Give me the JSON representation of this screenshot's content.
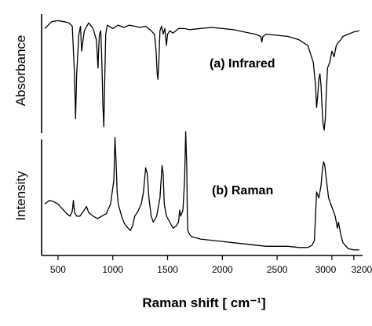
{
  "chart_data": [
    {
      "type": "line",
      "panel": "a",
      "annotation": "(a) Infrared",
      "ylabel": "Absorbance",
      "xlim": [
        350,
        3280
      ],
      "series": [
        {
          "x": [
            380,
            440,
            500,
            560,
            600,
            630,
            650,
            660,
            670,
            690,
            705,
            715,
            740,
            780,
            820,
            850,
            865,
            870,
            878,
            890,
            900,
            910,
            918,
            925,
            935,
            950,
            1000,
            1050,
            1100,
            1150,
            1200,
            1250,
            1300,
            1350,
            1380,
            1395,
            1405,
            1412,
            1420,
            1430,
            1445,
            1460,
            1475,
            1490,
            1500,
            1520,
            1550,
            1600,
            1650,
            1700,
            1800,
            1900,
            2000,
            2100,
            2200,
            2300,
            2350,
            2360,
            2370,
            2400,
            2500,
            2600,
            2700,
            2780,
            2830,
            2850,
            2860,
            2870,
            2880,
            2890,
            2900,
            2910,
            2920,
            2930,
            2940,
            2950,
            2960,
            2980,
            3000,
            3020,
            3040,
            3060,
            3080,
            3100,
            3150,
            3200,
            3250
          ],
          "y": [
            0.9,
            0.96,
            0.97,
            0.96,
            0.95,
            0.92,
            0.5,
            0.1,
            0.5,
            0.85,
            0.92,
            0.7,
            0.88,
            0.95,
            0.9,
            0.8,
            0.55,
            0.7,
            0.85,
            0.88,
            0.6,
            0.2,
            0.03,
            0.4,
            0.85,
            0.93,
            0.9,
            0.93,
            0.91,
            0.93,
            0.92,
            0.91,
            0.92,
            0.88,
            0.85,
            0.7,
            0.5,
            0.45,
            0.6,
            0.88,
            0.92,
            0.85,
            0.9,
            0.75,
            0.85,
            0.88,
            0.86,
            0.9,
            0.9,
            0.89,
            0.9,
            0.91,
            0.9,
            0.89,
            0.87,
            0.85,
            0.83,
            0.78,
            0.83,
            0.85,
            0.84,
            0.83,
            0.8,
            0.75,
            0.6,
            0.4,
            0.2,
            0.3,
            0.45,
            0.5,
            0.4,
            0.2,
            0.05,
            0.0,
            0.1,
            0.35,
            0.55,
            0.6,
            0.7,
            0.65,
            0.75,
            0.78,
            0.8,
            0.83,
            0.85,
            0.87,
            0.88
          ]
        }
      ]
    },
    {
      "type": "line",
      "panel": "b",
      "annotation": "(b) Raman",
      "ylabel": "Intensity",
      "xlabel": "Raman shift [ cm⁻¹]",
      "xlim": [
        350,
        3280
      ],
      "xticks": [
        500,
        1000,
        1500,
        2000,
        2500,
        3000,
        3200
      ],
      "xtick_labels": [
        "500",
        "1000",
        "1500",
        "2000",
        "2500",
        "3000",
        "3200"
      ],
      "series": [
        {
          "x": [
            380,
            420,
            460,
            500,
            540,
            580,
            610,
            630,
            640,
            650,
            670,
            700,
            740,
            760,
            780,
            820,
            860,
            900,
            940,
            980,
            1010,
            1020,
            1030,
            1040,
            1050,
            1080,
            1100,
            1120,
            1140,
            1160,
            1180,
            1200,
            1230,
            1260,
            1280,
            1300,
            1315,
            1330,
            1350,
            1370,
            1400,
            1430,
            1450,
            1460,
            1470,
            1490,
            1520,
            1550,
            1580,
            1600,
            1610,
            1620,
            1640,
            1655,
            1665,
            1675,
            1680,
            1685,
            1700,
            1720,
            1760,
            1800,
            1900,
            2000,
            2100,
            2200,
            2300,
            2400,
            2500,
            2600,
            2700,
            2780,
            2820,
            2840,
            2850,
            2860,
            2880,
            2900,
            2915,
            2925,
            2935,
            2950,
            2970,
            2990,
            3010,
            3030,
            3050,
            3060,
            3080,
            3100,
            3150,
            3200,
            3250
          ],
          "y": [
            0.4,
            0.43,
            0.42,
            0.4,
            0.36,
            0.32,
            0.3,
            0.34,
            0.43,
            0.33,
            0.3,
            0.3,
            0.35,
            0.38,
            0.33,
            0.3,
            0.28,
            0.3,
            0.32,
            0.4,
            0.6,
            0.95,
            0.75,
            0.5,
            0.4,
            0.3,
            0.25,
            0.22,
            0.2,
            0.18,
            0.22,
            0.3,
            0.34,
            0.4,
            0.5,
            0.7,
            0.65,
            0.45,
            0.3,
            0.25,
            0.3,
            0.45,
            0.72,
            0.65,
            0.4,
            0.3,
            0.25,
            0.2,
            0.22,
            0.25,
            0.35,
            0.3,
            0.35,
            0.6,
            1.0,
            0.7,
            0.3,
            0.18,
            0.15,
            0.13,
            0.12,
            0.11,
            0.1,
            0.09,
            0.08,
            0.07,
            0.06,
            0.05,
            0.05,
            0.05,
            0.04,
            0.04,
            0.06,
            0.1,
            0.3,
            0.5,
            0.45,
            0.55,
            0.7,
            0.75,
            0.72,
            0.6,
            0.45,
            0.4,
            0.35,
            0.3,
            0.2,
            0.25,
            0.15,
            0.08,
            0.03,
            0.02,
            0.02
          ]
        }
      ]
    }
  ]
}
